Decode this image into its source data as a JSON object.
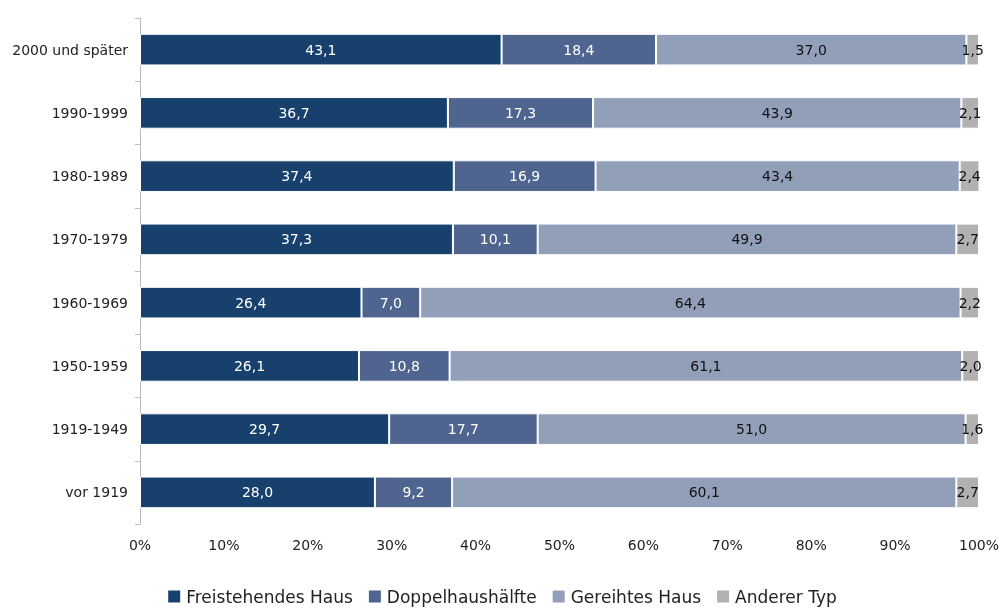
{
  "chart_data": {
    "type": "bar",
    "orientation": "horizontal",
    "stacked": true,
    "categories": [
      "2000 und später",
      "1990-1999",
      "1980-1989",
      "1970-1979",
      "1960-1969",
      "1950-1959",
      "1919-1949",
      "vor 1919"
    ],
    "series": [
      {
        "name": "Freistehendes Haus",
        "color": "#17406d",
        "values": [
          43.1,
          36.7,
          37.4,
          37.3,
          26.4,
          26.1,
          29.7,
          28.0
        ],
        "value_labels": [
          "43,1",
          "36,7",
          "37,4",
          "37,3",
          "26,4",
          "26,1",
          "29,7",
          "28,0"
        ]
      },
      {
        "name": "Doppelhaushälfte",
        "color": "#4f6590",
        "values": [
          18.4,
          17.3,
          16.9,
          10.1,
          7.0,
          10.8,
          17.7,
          9.2
        ],
        "value_labels": [
          "18,4",
          "17,3",
          "16,9",
          "10,1",
          "7,0",
          "10,8",
          "17,7",
          "9,2"
        ]
      },
      {
        "name": "Gereihtes Haus",
        "color": "#929fb8",
        "values": [
          37.0,
          43.9,
          43.4,
          49.9,
          64.4,
          61.1,
          51.0,
          60.1
        ],
        "value_labels": [
          "37,0",
          "43,9",
          "43,4",
          "49,9",
          "64,4",
          "61,1",
          "51,0",
          "60,1"
        ]
      },
      {
        "name": "Anderer Typ",
        "color": "#b1b1b1",
        "values": [
          1.5,
          2.1,
          2.4,
          2.7,
          2.2,
          2.0,
          1.6,
          2.7
        ],
        "value_labels": [
          "1,5",
          "2,1",
          "2,4",
          "2,7",
          "2,2",
          "2,0",
          "1,6",
          "2,7"
        ]
      }
    ],
    "xlim": [
      0,
      100
    ],
    "xticks": [
      {
        "value": 0,
        "label": "0%"
      },
      {
        "value": 10,
        "label": "10%"
      },
      {
        "value": 20,
        "label": "20%"
      },
      {
        "value": 30,
        "label": "30%"
      },
      {
        "value": 40,
        "label": "40%"
      },
      {
        "value": 50,
        "label": "50%"
      },
      {
        "value": 60,
        "label": "60%"
      },
      {
        "value": 70,
        "label": "70%"
      },
      {
        "value": 80,
        "label": "80%"
      },
      {
        "value": 90,
        "label": "90%"
      },
      {
        "value": 100,
        "label": "100%"
      }
    ],
    "grid": false,
    "legend": "bottom"
  }
}
